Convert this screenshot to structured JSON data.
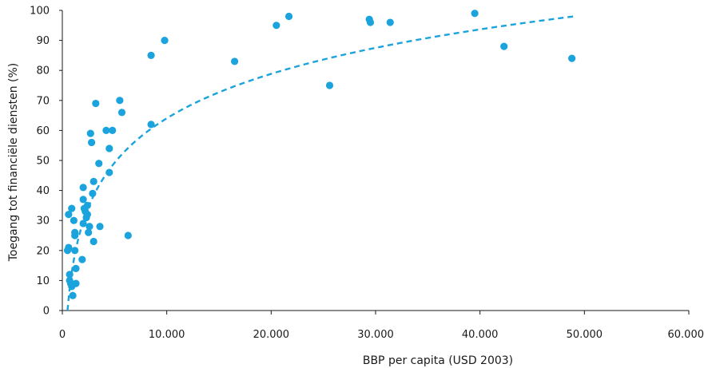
{
  "chart_data": {
    "type": "scatter",
    "title": "",
    "xlabel": "BBP per capita (USD 2003)",
    "ylabel": "Toegang tot financiële diensten (%)",
    "xlim": [
      0,
      60000
    ],
    "ylim": [
      0,
      100
    ],
    "x_ticks": [
      0,
      10000,
      20000,
      30000,
      40000,
      50000,
      60000
    ],
    "x_tick_labels": [
      "0",
      "10.000",
      "20.000",
      "30.000",
      "40.000",
      "50.000",
      "60.000"
    ],
    "y_ticks": [
      0,
      10,
      20,
      30,
      40,
      50,
      60,
      70,
      80,
      90,
      100
    ],
    "y_tick_labels": [
      "0",
      "10",
      "20",
      "30",
      "40",
      "50",
      "60",
      "70",
      "80",
      "90",
      "100"
    ],
    "grid": false,
    "legend": "none",
    "colors": {
      "points": "#1aa3dc",
      "trend": "#1aa3dc",
      "axis": "#1a1a1a"
    },
    "trendline": {
      "style": "dashed",
      "model": "logarithmic",
      "x_range": [
        500,
        49000
      ],
      "samples": [
        [
          500,
          0
        ],
        [
          1000,
          13
        ],
        [
          2000,
          28
        ],
        [
          5000,
          52
        ],
        [
          10000,
          65
        ],
        [
          20000,
          80
        ],
        [
          30000,
          88
        ],
        [
          40000,
          94
        ],
        [
          49000,
          98
        ]
      ]
    },
    "points": [
      [
        500,
        20
      ],
      [
        600,
        21
      ],
      [
        600,
        32
      ],
      [
        700,
        10
      ],
      [
        700,
        12
      ],
      [
        800,
        9
      ],
      [
        900,
        34
      ],
      [
        900,
        8
      ],
      [
        1000,
        5
      ],
      [
        1100,
        30
      ],
      [
        1200,
        25
      ],
      [
        1200,
        26
      ],
      [
        1200,
        20
      ],
      [
        1300,
        14
      ],
      [
        1300,
        9
      ],
      [
        1900,
        17
      ],
      [
        2000,
        29
      ],
      [
        2000,
        37
      ],
      [
        2000,
        41
      ],
      [
        2100,
        34
      ],
      [
        2200,
        33
      ],
      [
        2300,
        31
      ],
      [
        2400,
        32
      ],
      [
        2400,
        35
      ],
      [
        2500,
        26
      ],
      [
        2600,
        28
      ],
      [
        2700,
        59
      ],
      [
        2800,
        56
      ],
      [
        2900,
        39
      ],
      [
        3000,
        43
      ],
      [
        3000,
        23
      ],
      [
        3200,
        69
      ],
      [
        3500,
        49
      ],
      [
        3600,
        28
      ],
      [
        4200,
        60
      ],
      [
        4500,
        54
      ],
      [
        4500,
        46
      ],
      [
        4800,
        60
      ],
      [
        5500,
        70
      ],
      [
        5700,
        66
      ],
      [
        6300,
        25
      ],
      [
        8500,
        85
      ],
      [
        8500,
        62
      ],
      [
        9800,
        90
      ],
      [
        16500,
        83
      ],
      [
        20500,
        95
      ],
      [
        21700,
        98
      ],
      [
        25600,
        75
      ],
      [
        29400,
        97
      ],
      [
        29500,
        96
      ],
      [
        31400,
        96
      ],
      [
        39500,
        99
      ],
      [
        42300,
        88
      ],
      [
        48800,
        84
      ]
    ]
  }
}
